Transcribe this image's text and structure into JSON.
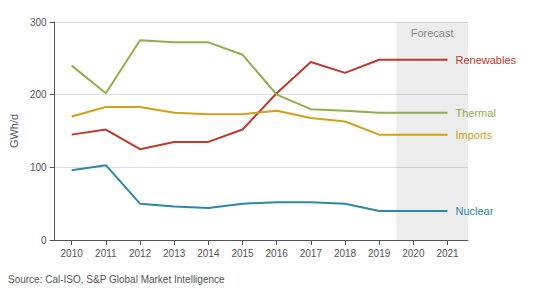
{
  "chart_data": {
    "type": "line",
    "x": [
      2010,
      2011,
      2012,
      2013,
      2014,
      2015,
      2016,
      2017,
      2018,
      2019,
      2020,
      2021
    ],
    "series": [
      {
        "name": "Renewables",
        "color": "#c0392b",
        "values": [
          145,
          152,
          125,
          135,
          135,
          152,
          202,
          245,
          230,
          248,
          248,
          248
        ]
      },
      {
        "name": "Thermal",
        "color": "#8db04a",
        "values": [
          240,
          202,
          275,
          272,
          272,
          255,
          200,
          180,
          178,
          175,
          175,
          175
        ]
      },
      {
        "name": "Imports",
        "color": "#d4a017",
        "values": [
          170,
          183,
          183,
          175,
          173,
          173,
          178,
          168,
          163,
          145,
          145,
          145
        ]
      },
      {
        "name": "Nuclear",
        "color": "#2e86ab",
        "values": [
          96,
          103,
          50,
          46,
          44,
          50,
          52,
          52,
          50,
          40,
          40,
          40
        ]
      }
    ],
    "xlim": [
      2009.5,
      2021.6
    ],
    "xticks": [
      2010,
      2011,
      2012,
      2013,
      2014,
      2015,
      2016,
      2017,
      2018,
      2019,
      2020,
      2021
    ],
    "ylim": [
      0,
      300
    ],
    "yticks": [
      0,
      100,
      200,
      300
    ],
    "ylabel": "GWh/d",
    "grid": true,
    "forecast_start": 2019.5,
    "forecast_label": "Forecast",
    "source": "Source: Cal-ISO, S&P Global Market Intelligence"
  }
}
